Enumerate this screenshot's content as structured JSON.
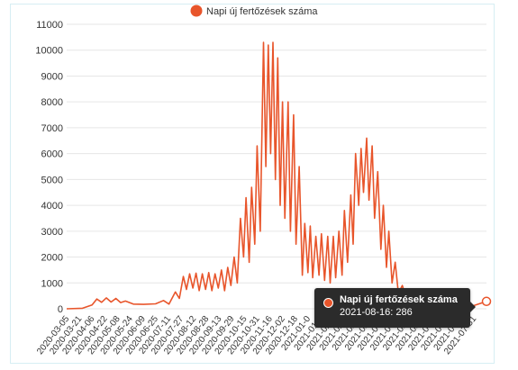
{
  "colors": {
    "series": "#e8552b",
    "grid": "#e6e6e6",
    "text": "#333333",
    "tooltip_bg": "#2b2b2b"
  },
  "chart_data": {
    "type": "line",
    "title": "",
    "xlabel": "",
    "ylabel": "",
    "ylim": [
      0,
      11000
    ],
    "yticks": [
      0,
      1000,
      2000,
      3000,
      4000,
      5000,
      6000,
      7000,
      8000,
      9000,
      10000,
      11000
    ],
    "grid": true,
    "legend_position": "top-center",
    "x_tick_labels": [
      "2020-03-05",
      "2020-03-21",
      "2020-04-06",
      "2020-04-22",
      "2020-05-08",
      "2020-05-24",
      "2020-06-09",
      "2020-06-25",
      "2020-07-11",
      "2020-07-27",
      "2020-08-12",
      "2020-08-28",
      "2020-09-13",
      "2020-09-29",
      "2020-10-15",
      "2020-10-31",
      "2020-11-16",
      "2020-12-02",
      "2020-12-18",
      "2021-01-03",
      "2021-01-19",
      "2021-02-04",
      "2021-02-20",
      "2021-03-08",
      "2021-03-24",
      "2021-04-09",
      "2021-04-25",
      "2021-05-11",
      "2021-05-27",
      "2021-06-12",
      "2021-06-28",
      "2021-07-14",
      "2021-07-31"
    ],
    "x_tick_labels_display": [
      "2020-03-05",
      "2020-03-21",
      "2020-04-06",
      "2020-04-22",
      "2020-05-08",
      "2020-05-24",
      "2020-06-09",
      "2020-06-25",
      "2020-07-11",
      "2020-07-27",
      "2020-08-12",
      "2020-08-28",
      "2020-09-13",
      "2020-09-29",
      "2020-10-15",
      "2020-10-31",
      "2020-11-16",
      "2020-12-02",
      "2020-12-18",
      "2021-01-0",
      "2021-01-1",
      "2021-02-0",
      "2021-02-2",
      "2021-03-0",
      "2021-03-2",
      "2021-04-0",
      "2021-04-2",
      "2021-05-1",
      "2021-05-2",
      "2021-06-1",
      "2021-06-2",
      "2021-07-1",
      "2021-07-31"
    ],
    "series": [
      {
        "name": "Napi új fertőzések száma",
        "points": [
          [
            "2020-03-05",
            0
          ],
          [
            "2020-03-25",
            20
          ],
          [
            "2020-04-06",
            150
          ],
          [
            "2020-04-12",
            380
          ],
          [
            "2020-04-18",
            250
          ],
          [
            "2020-04-24",
            420
          ],
          [
            "2020-04-30",
            260
          ],
          [
            "2020-05-06",
            400
          ],
          [
            "2020-05-12",
            240
          ],
          [
            "2020-05-18",
            300
          ],
          [
            "2020-05-28",
            180
          ],
          [
            "2020-06-10",
            170
          ],
          [
            "2020-06-25",
            190
          ],
          [
            "2020-07-05",
            320
          ],
          [
            "2020-07-12",
            180
          ],
          [
            "2020-07-20",
            650
          ],
          [
            "2020-07-25",
            400
          ],
          [
            "2020-07-30",
            1250
          ],
          [
            "2020-08-03",
            750
          ],
          [
            "2020-08-07",
            1350
          ],
          [
            "2020-08-11",
            800
          ],
          [
            "2020-08-15",
            1380
          ],
          [
            "2020-08-19",
            700
          ],
          [
            "2020-08-23",
            1350
          ],
          [
            "2020-08-27",
            750
          ],
          [
            "2020-08-31",
            1400
          ],
          [
            "2020-09-04",
            700
          ],
          [
            "2020-09-08",
            1350
          ],
          [
            "2020-09-12",
            800
          ],
          [
            "2020-09-16",
            1500
          ],
          [
            "2020-09-20",
            700
          ],
          [
            "2020-09-24",
            1600
          ],
          [
            "2020-09-28",
            900
          ],
          [
            "2020-10-02",
            2000
          ],
          [
            "2020-10-06",
            1000
          ],
          [
            "2020-10-10",
            3500
          ],
          [
            "2020-10-14",
            2000
          ],
          [
            "2020-10-17",
            4300
          ],
          [
            "2020-10-21",
            1800
          ],
          [
            "2020-10-24",
            4700
          ],
          [
            "2020-10-28",
            2500
          ],
          [
            "2020-10-31",
            6300
          ],
          [
            "2020-11-04",
            3000
          ],
          [
            "2020-11-08",
            10300
          ],
          [
            "2020-11-11",
            5500
          ],
          [
            "2020-11-14",
            10200
          ],
          [
            "2020-11-17",
            6000
          ],
          [
            "2020-11-20",
            10300
          ],
          [
            "2020-11-23",
            5000
          ],
          [
            "2020-11-26",
            9700
          ],
          [
            "2020-11-29",
            4000
          ],
          [
            "2020-12-02",
            8000
          ],
          [
            "2020-12-05",
            3500
          ],
          [
            "2020-12-09",
            8000
          ],
          [
            "2020-12-12",
            3000
          ],
          [
            "2020-12-16",
            7500
          ],
          [
            "2020-12-19",
            2500
          ],
          [
            "2020-12-23",
            5500
          ],
          [
            "2020-12-27",
            1300
          ],
          [
            "2020-12-30",
            3300
          ],
          [
            "2021-01-03",
            1400
          ],
          [
            "2021-01-06",
            3200
          ],
          [
            "2021-01-09",
            1200
          ],
          [
            "2021-01-13",
            2800
          ],
          [
            "2021-01-17",
            1300
          ],
          [
            "2021-01-20",
            2900
          ],
          [
            "2021-01-24",
            1100
          ],
          [
            "2021-01-28",
            2800
          ],
          [
            "2021-01-31",
            1000
          ],
          [
            "2021-02-04",
            2800
          ],
          [
            "2021-02-07",
            1200
          ],
          [
            "2021-02-11",
            3000
          ],
          [
            "2021-02-15",
            1300
          ],
          [
            "2021-02-18",
            3800
          ],
          [
            "2021-02-22",
            1800
          ],
          [
            "2021-02-26",
            4400
          ],
          [
            "2021-03-01",
            2500
          ],
          [
            "2021-03-04",
            6000
          ],
          [
            "2021-03-08",
            4000
          ],
          [
            "2021-03-11",
            6200
          ],
          [
            "2021-03-14",
            4500
          ],
          [
            "2021-03-18",
            6600
          ],
          [
            "2021-03-21",
            4200
          ],
          [
            "2021-03-25",
            6300
          ],
          [
            "2021-03-28",
            3500
          ],
          [
            "2021-04-01",
            5300
          ],
          [
            "2021-04-05",
            2300
          ],
          [
            "2021-04-08",
            4000
          ],
          [
            "2021-04-12",
            1600
          ],
          [
            "2021-04-15",
            3000
          ],
          [
            "2021-04-19",
            1000
          ],
          [
            "2021-04-23",
            1800
          ],
          [
            "2021-04-27",
            600
          ],
          [
            "2021-05-02",
            900
          ],
          [
            "2021-05-08",
            300
          ],
          [
            "2021-05-14",
            450
          ],
          [
            "2021-05-22",
            150
          ],
          [
            "2021-05-31",
            120
          ],
          [
            "2021-06-10",
            60
          ],
          [
            "2021-06-25",
            40
          ],
          [
            "2021-07-10",
            50
          ],
          [
            "2021-07-25",
            60
          ],
          [
            "2021-08-16",
            286
          ]
        ]
      }
    ],
    "tooltip": {
      "series_name": "Napi új fertőzések száma",
      "text": "2021-08-16: 286"
    }
  }
}
